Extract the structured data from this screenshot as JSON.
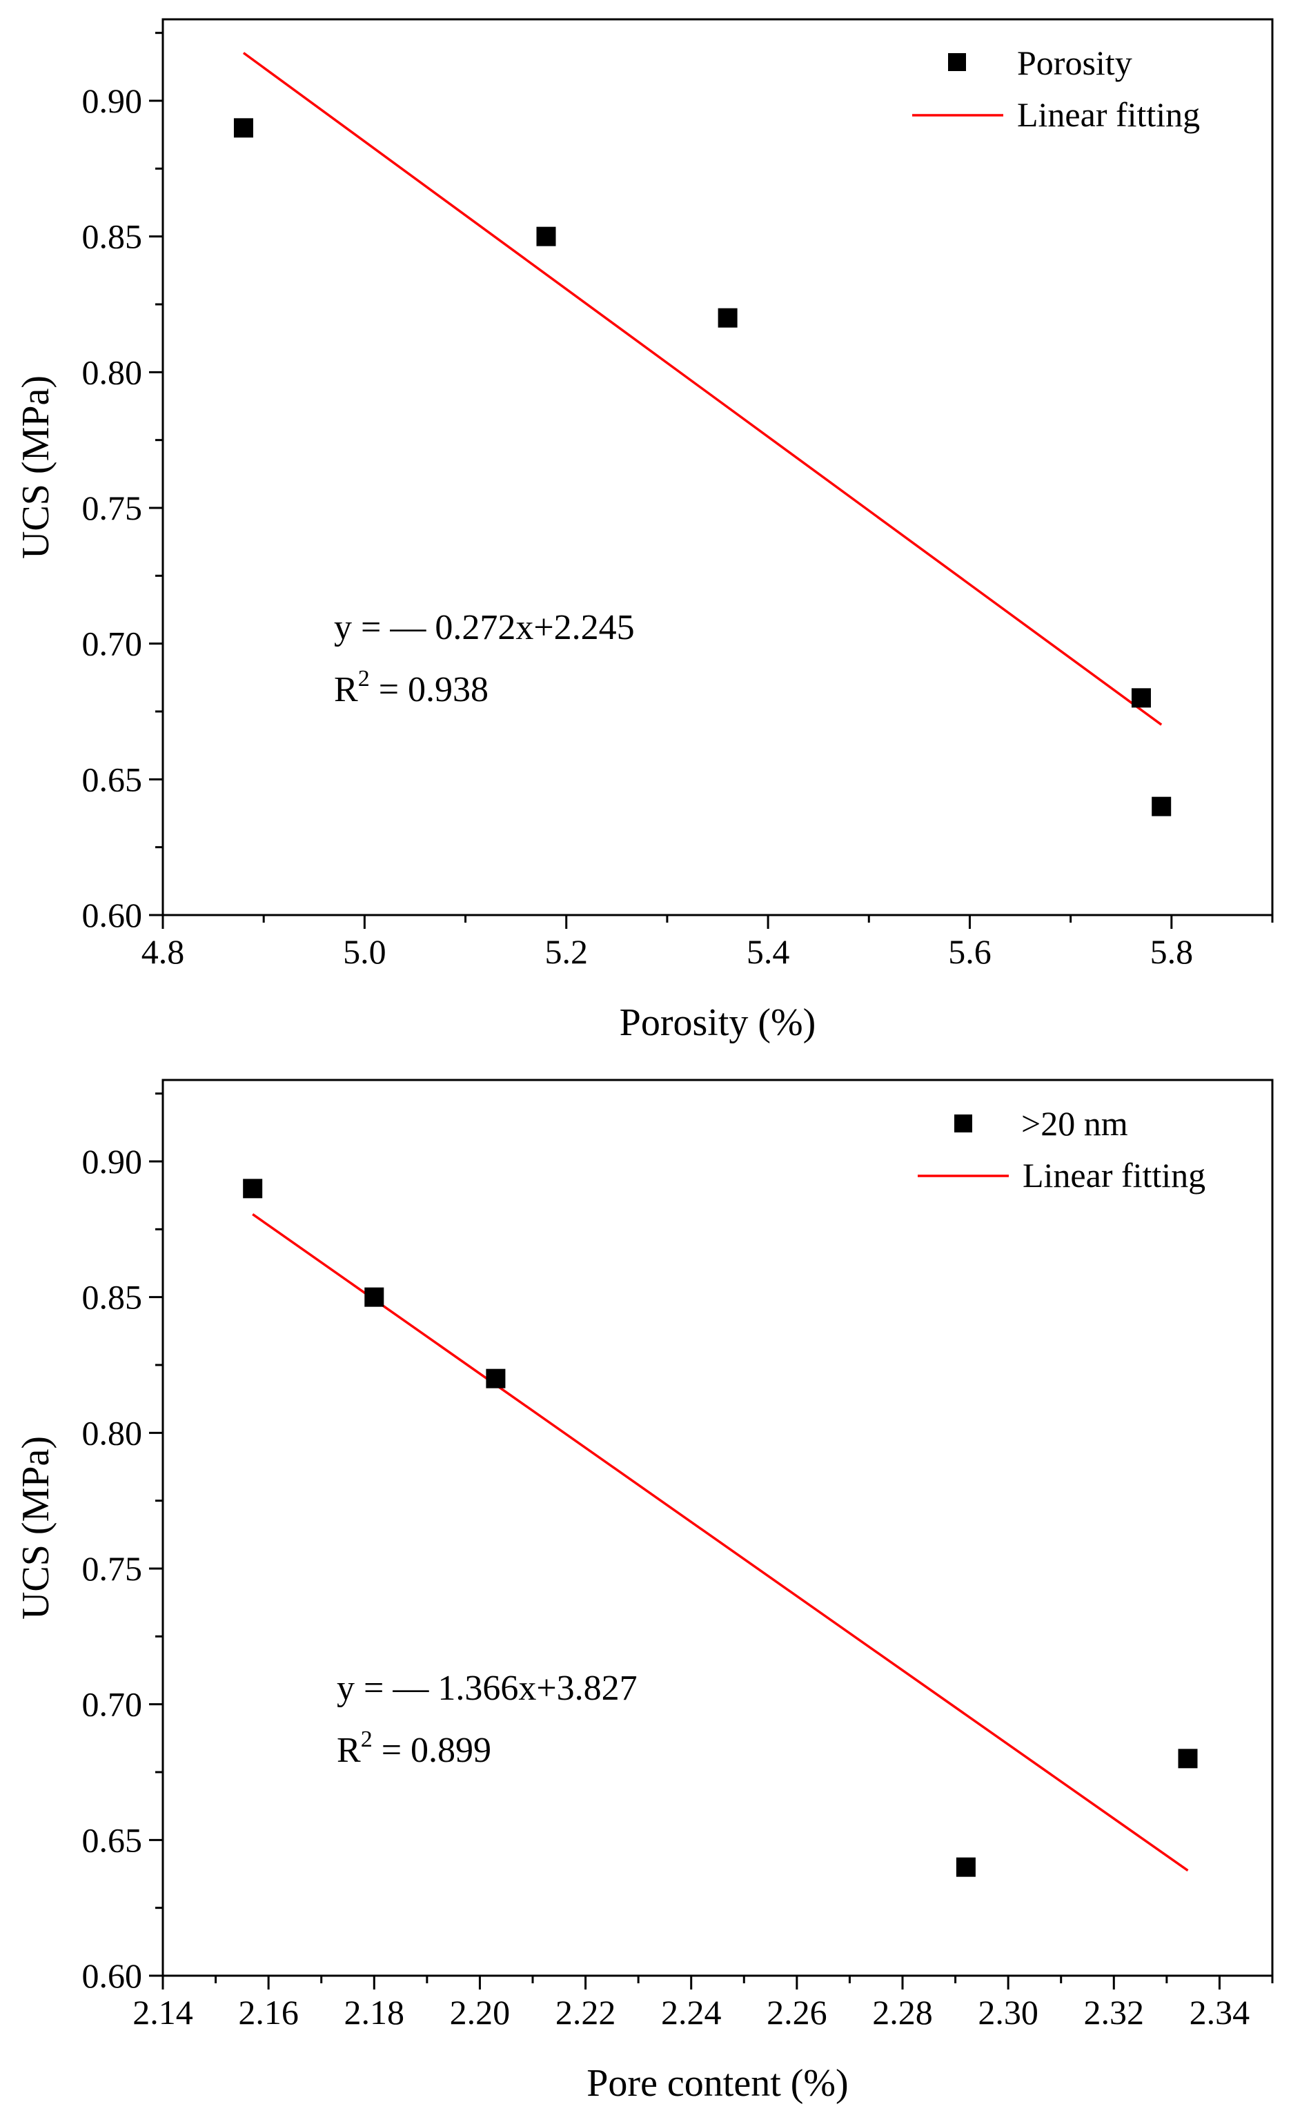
{
  "chart_data": [
    {
      "type": "scatter",
      "ylabel": "UCS (MPa)",
      "xlabel": "Porosity (%)",
      "xlim": [
        4.8,
        5.9
      ],
      "ylim": [
        0.6,
        0.93
      ],
      "xticks": [
        "4.8",
        "5.0",
        "5.2",
        "5.4",
        "5.6",
        "5.8"
      ],
      "xtick_values": [
        4.8,
        5.0,
        5.2,
        5.4,
        5.6,
        5.8
      ],
      "xminor_values": [
        4.9,
        5.1,
        5.3,
        5.5,
        5.7,
        5.9
      ],
      "yticks": [
        "0.60",
        "0.65",
        "0.70",
        "0.75",
        "0.80",
        "0.85",
        "0.90"
      ],
      "ytick_values": [
        0.6,
        0.65,
        0.7,
        0.75,
        0.8,
        0.85,
        0.9
      ],
      "yminor_values": [
        0.625,
        0.675,
        0.725,
        0.775,
        0.825,
        0.875,
        0.925
      ],
      "series": [
        {
          "name": "Porosity",
          "kind": "scatter",
          "x": [
            4.88,
            5.18,
            5.36,
            5.77,
            5.79
          ],
          "y": [
            0.89,
            0.85,
            0.82,
            0.68,
            0.64
          ]
        },
        {
          "name": "Linear fitting",
          "kind": "line",
          "slope": -0.272,
          "intercept": 2.245,
          "x_range": [
            4.88,
            5.79
          ]
        }
      ],
      "legend": [
        "Porosity",
        "Linear fitting"
      ],
      "legend_position": "top-right",
      "annotation": {
        "equation": "y = — 0.272x+2.245",
        "r2_prefix": "R",
        "r2_sup": "2",
        "r2_value": " = 0.938"
      },
      "colors": {
        "markers": "#000000",
        "fit_line": "#ff0000",
        "axes": "#000000"
      }
    },
    {
      "type": "scatter",
      "ylabel": "UCS (MPa)",
      "xlabel": "Pore content (%)",
      "xlim": [
        2.14,
        2.35
      ],
      "ylim": [
        0.6,
        0.93
      ],
      "xticks": [
        "2.14",
        "2.16",
        "2.18",
        "2.20",
        "2.22",
        "2.24",
        "2.26",
        "2.28",
        "2.30",
        "2.32",
        "2.34"
      ],
      "xtick_values": [
        2.14,
        2.16,
        2.18,
        2.2,
        2.22,
        2.24,
        2.26,
        2.28,
        2.3,
        2.32,
        2.34
      ],
      "xminor_values": [
        2.15,
        2.17,
        2.19,
        2.21,
        2.23,
        2.25,
        2.27,
        2.29,
        2.31,
        2.33,
        2.35
      ],
      "yticks": [
        "0.60",
        "0.65",
        "0.70",
        "0.75",
        "0.80",
        "0.85",
        "0.90"
      ],
      "ytick_values": [
        0.6,
        0.65,
        0.7,
        0.75,
        0.8,
        0.85,
        0.9
      ],
      "yminor_values": [
        0.625,
        0.675,
        0.725,
        0.775,
        0.825,
        0.875,
        0.925
      ],
      "series": [
        {
          "name": ">20 nm",
          "kind": "scatter",
          "x": [
            2.157,
            2.18,
            2.203,
            2.292,
            2.334
          ],
          "y": [
            0.89,
            0.85,
            0.82,
            0.64,
            0.68
          ]
        },
        {
          "name": "Linear fitting",
          "kind": "line",
          "slope": -1.366,
          "intercept": 3.827,
          "x_range": [
            2.157,
            2.334
          ]
        }
      ],
      "legend": [
        ">20 nm",
        "Linear fitting"
      ],
      "legend_position": "top-right",
      "annotation": {
        "equation": "y = — 1.366x+3.827",
        "r2_prefix": "R",
        "r2_sup": "2",
        "r2_value": " = 0.899"
      },
      "colors": {
        "markers": "#000000",
        "fit_line": "#ff0000",
        "axes": "#000000"
      }
    }
  ]
}
